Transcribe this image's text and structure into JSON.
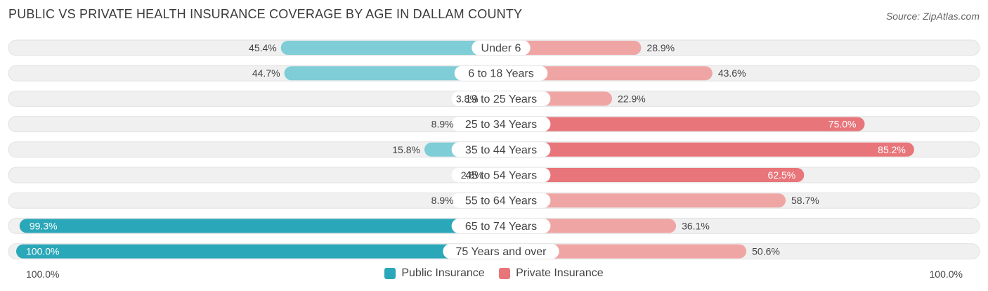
{
  "header": {
    "title": "PUBLIC VS PRIVATE HEALTH INSURANCE COVERAGE BY AGE IN DALLAM COUNTY",
    "source": "Source: ZipAtlas.com"
  },
  "colors": {
    "public": "#2aa7b8",
    "public_light": "#7fcdd6",
    "private": "#e8757a",
    "private_light": "#f0a5a5",
    "track": "#f0f0f0"
  },
  "chart_data": {
    "type": "bar",
    "orientation": "horizontal-diverging",
    "title": "PUBLIC VS PRIVATE HEALTH INSURANCE COVERAGE BY AGE IN DALLAM COUNTY",
    "categories": [
      "Under 6",
      "6 to 18 Years",
      "19 to 25 Years",
      "25 to 34 Years",
      "35 to 44 Years",
      "45 to 54 Years",
      "55 to 64 Years",
      "65 to 74 Years",
      "75 Years and over"
    ],
    "series": [
      {
        "name": "Public Insurance",
        "values": [
          45.4,
          44.7,
          3.8,
          8.9,
          15.8,
          2.8,
          8.9,
          99.3,
          100.0
        ]
      },
      {
        "name": "Private Insurance",
        "values": [
          28.9,
          43.6,
          22.9,
          75.0,
          85.2,
          62.5,
          58.7,
          36.1,
          50.6
        ]
      }
    ],
    "value_labels": {
      "public": [
        "45.4%",
        "44.7%",
        "3.8%",
        "8.9%",
        "15.8%",
        "2.8%",
        "8.9%",
        "99.3%",
        "100.0%"
      ],
      "private": [
        "28.9%",
        "43.6%",
        "22.9%",
        "75.0%",
        "85.2%",
        "62.5%",
        "58.7%",
        "36.1%",
        "50.6%"
      ]
    },
    "xlim": [
      0,
      100
    ],
    "axis_labels": {
      "left": "100.0%",
      "right": "100.0%"
    },
    "legend": {
      "position": "bottom-center",
      "entries": [
        "Public Insurance",
        "Private Insurance"
      ]
    }
  }
}
